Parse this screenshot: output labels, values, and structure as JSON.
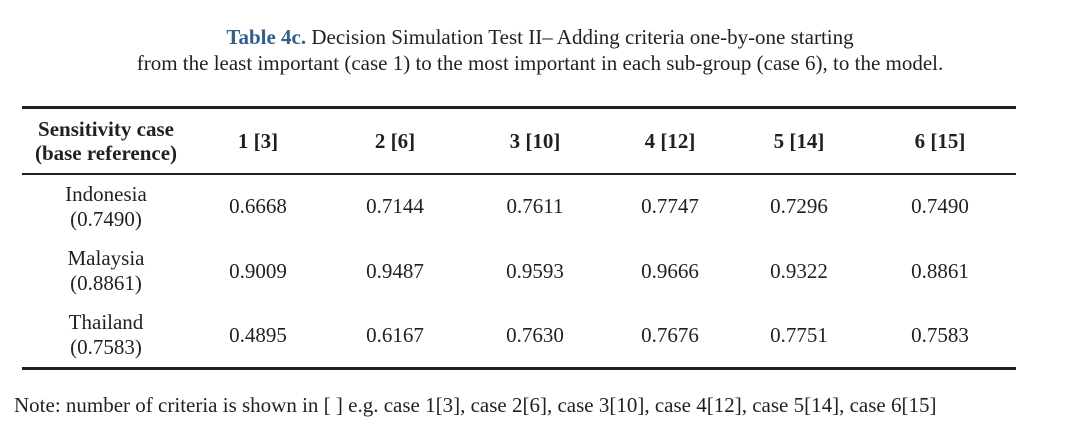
{
  "caption": {
    "label": "Table 4c.",
    "line1": " Decision Simulation Test II– Adding criteria one-by-one starting",
    "line2": "from the least important (case 1) to the most important in each sub-group (case 6), to the model."
  },
  "table": {
    "header": {
      "line1": "Sensitivity case",
      "line2": "(base reference)",
      "cols": [
        "1 [3]",
        "2 [6]",
        "3 [10]",
        "4 [12]",
        "5 [14]",
        "6 [15]"
      ]
    },
    "rows": [
      {
        "name": "Indonesia",
        "ref": "(0.7490)",
        "values": [
          "0.6668",
          "0.7144",
          "0.7611",
          "0.7747",
          "0.7296",
          "0.7490"
        ]
      },
      {
        "name": "Malaysia",
        "ref": "(0.8861)",
        "values": [
          "0.9009",
          "0.9487",
          "0.9593",
          "0.9666",
          "0.9322",
          "0.8861"
        ]
      },
      {
        "name": "Thailand",
        "ref": "(0.7583)",
        "values": [
          "0.4895",
          "0.6167",
          "0.7630",
          "0.7676",
          "0.7751",
          "0.7583"
        ]
      }
    ]
  },
  "note": "Note: number of criteria is shown in [ ] e.g. case 1[3], case 2[6], case 3[10], case 4[12], case 5[14], case 6[15]"
}
